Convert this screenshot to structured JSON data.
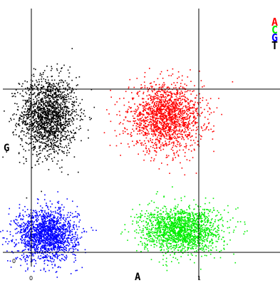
{
  "chart_data": {
    "type": "scatter",
    "title": "",
    "xlabel": "A",
    "ylabel": "G",
    "tick_labels": {
      "origin_y": "0",
      "x_start": "0",
      "x_end": "1"
    },
    "legend": [
      {
        "label": "A",
        "color": "#ff0000"
      },
      {
        "label": "C",
        "color": "#00ee00"
      },
      {
        "label": "G",
        "color": "#0000ff"
      },
      {
        "label": "T",
        "color": "#000000"
      }
    ],
    "legend_placement": "top-right",
    "xlim": [
      0,
      1
    ],
    "ylim": [
      0,
      1
    ],
    "threshold_lines": {
      "x": [
        0.0,
        1.0
      ],
      "y": [
        1.0,
        0.0
      ]
    },
    "clusters": [
      {
        "name": "T",
        "color": "#000000",
        "center": [
          0.1,
          0.84
        ],
        "spread": [
          0.085,
          0.12
        ]
      },
      {
        "name": "A",
        "color": "#ff0000",
        "center": [
          0.8,
          0.83
        ],
        "spread": [
          0.11,
          0.1
        ]
      },
      {
        "name": "G",
        "color": "#0000ff",
        "center": [
          0.09,
          0.11
        ],
        "spread": [
          0.09,
          0.08
        ]
      },
      {
        "name": "C",
        "color": "#00ee00",
        "center": [
          0.89,
          0.14
        ],
        "spread": [
          0.12,
          0.07
        ]
      }
    ]
  }
}
